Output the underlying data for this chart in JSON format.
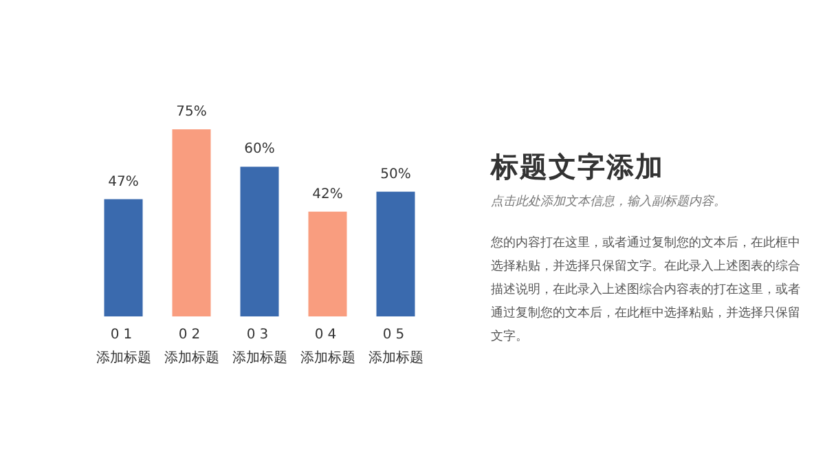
{
  "chart_data": {
    "type": "bar",
    "title": "标题文字添加",
    "subtitle": "点击此处添加文本信息，输入副标题内容。",
    "categories": [
      "01 添加标题",
      "02 添加标题",
      "03 添加标题",
      "04 添加标题",
      "05 添加标题"
    ],
    "values": [
      47,
      75,
      60,
      42,
      50
    ],
    "value_labels": [
      "47%",
      "75%",
      "60%",
      "42%",
      "50%"
    ],
    "colors": [
      "#3a6aae",
      "#f99d7f",
      "#3a6aae",
      "#f99d7f",
      "#3a6aae"
    ],
    "annotations": [
      "您的内容打在这里，或者通过复制您的文本后，在此框中选择粘贴，并选择只保留文字。在此录入上述图表的综合描述说明，在此录入上述图综合内容表的打在这里，或者通过复制您的文本后，在此框中选择粘贴，并选择只保留文字。"
    ]
  }
}
